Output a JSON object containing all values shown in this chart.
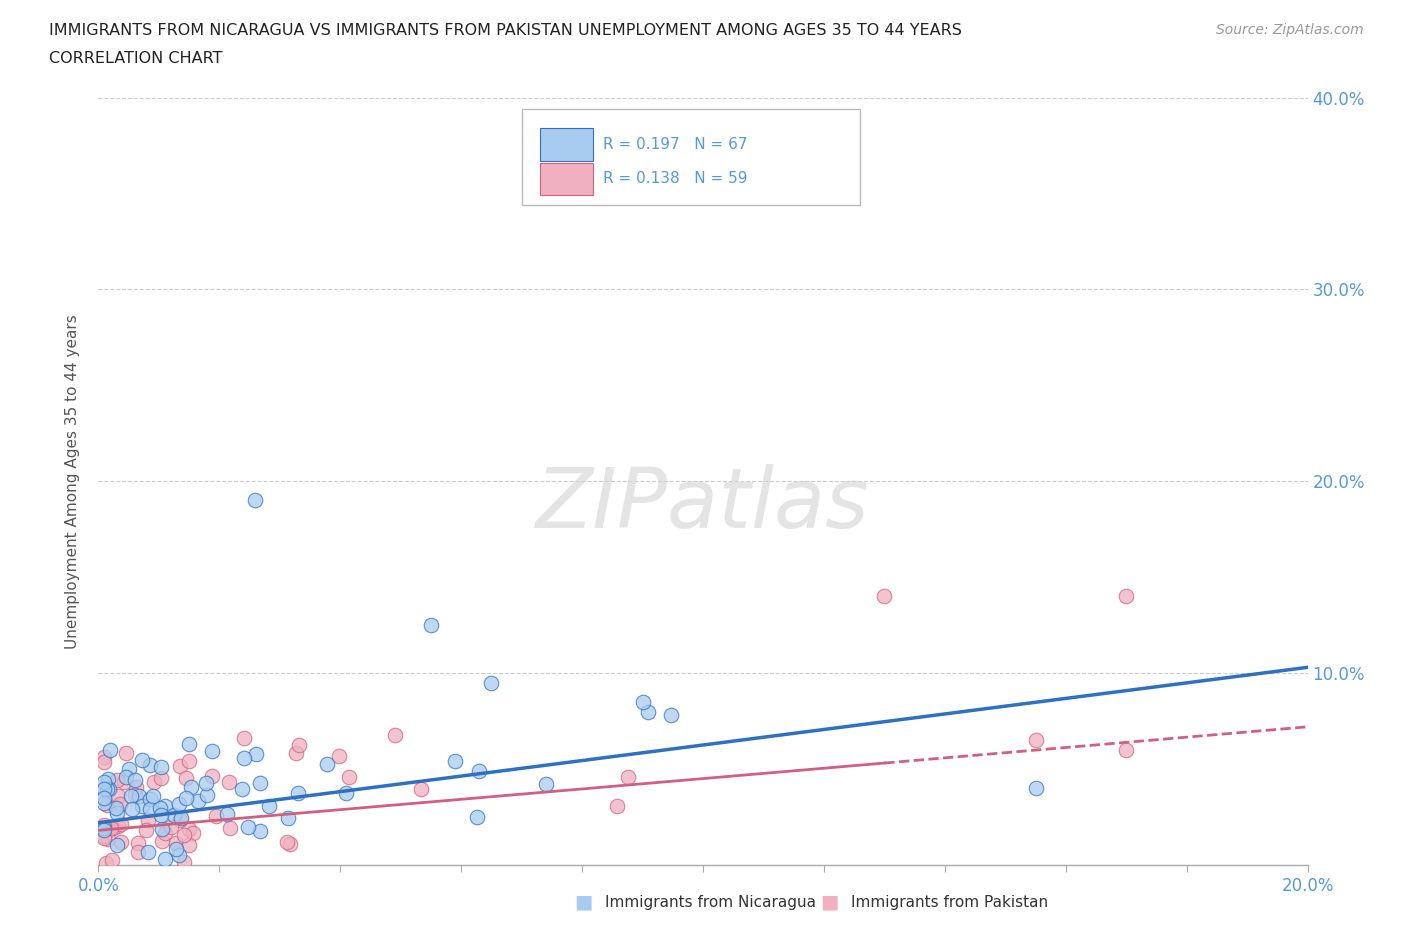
{
  "title_line1": "IMMIGRANTS FROM NICARAGUA VS IMMIGRANTS FROM PAKISTAN UNEMPLOYMENT AMONG AGES 35 TO 44 YEARS",
  "title_line2": "CORRELATION CHART",
  "source_text": "Source: ZipAtlas.com",
  "ylabel": "Unemployment Among Ages 35 to 44 years",
  "xlim": [
    0.0,
    0.2
  ],
  "ylim": [
    0.0,
    0.4
  ],
  "watermark": "ZIPatlas",
  "nicaragua_R": 0.197,
  "nicaragua_N": 67,
  "pakistan_R": 0.138,
  "pakistan_N": 59,
  "nicaragua_color": "#A8CCF0",
  "pakistan_color": "#F0B0C0",
  "trend_nicaragua_color": "#3070C0",
  "trend_pakistan_color": "#D06080",
  "background_color": "#FFFFFF",
  "grid_color": "#CCCCCC",
  "title_color": "#222222",
  "axis_label_color": "#5599DD",
  "legend_R_color": "#5599DD",
  "nic_trend_x0": 0.0,
  "nic_trend_y0": 0.022,
  "nic_trend_x1": 0.2,
  "nic_trend_y1": 0.103,
  "pak_trend_x0": 0.0,
  "pak_trend_y0": 0.018,
  "pak_trend_x1": 0.2,
  "pak_trend_y1": 0.072,
  "pak_dash_split": 0.13
}
